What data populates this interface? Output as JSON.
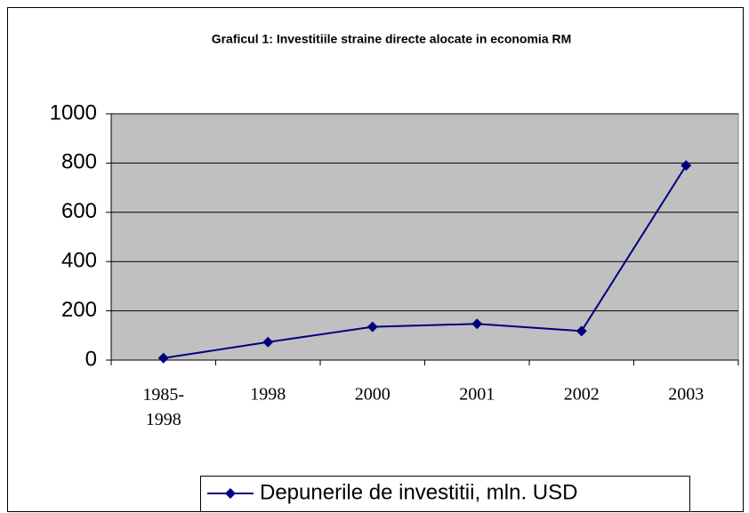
{
  "chart_data": {
    "type": "line",
    "title": "Graficul 1: Investitiile straine directe alocate in economia RM",
    "categories": [
      "1985-1998",
      "1998",
      "2000",
      "2001",
      "2002",
      "2003"
    ],
    "series": [
      {
        "name": "Depunerile de investitii, mln. USD",
        "color": "#000080",
        "values": [
          8,
          73,
          135,
          147,
          118,
          790
        ]
      }
    ],
    "ylim": [
      0,
      1000
    ],
    "yticks": [
      0,
      200,
      400,
      600,
      800,
      1000
    ],
    "grid": true,
    "legend": "bottom"
  }
}
